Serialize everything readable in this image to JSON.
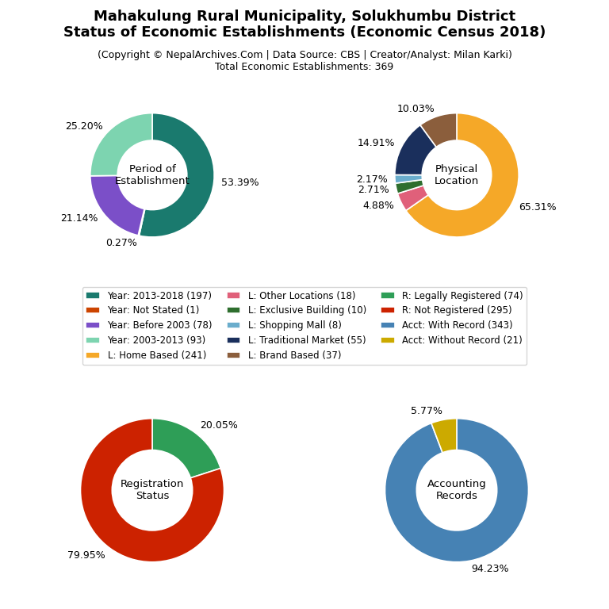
{
  "title": [
    "Mahakulung Rural Municipality, Solukhumbu District",
    "Status of Economic Establishments (Economic Census 2018)"
  ],
  "subtitle": [
    "(Copyright © NepalArchives.Com | Data Source: CBS | Creator/Analyst: Milan Karki)",
    "Total Economic Establishments: 369"
  ],
  "legend": "center",
  "chart_data": [
    {
      "type": "pie",
      "title": "Period of\nEstablishment",
      "categories": [
        "Year: 2013-2018 (197)",
        "Year: Not Stated (1)",
        "Year: Before 2003 (78)",
        "Year: 2003-2013 (93)"
      ],
      "values": [
        53.39,
        0.27,
        21.14,
        25.2
      ],
      "value_labels": [
        "53.39%",
        "0.27%",
        "21.14%",
        "25.20%"
      ],
      "colors": [
        "#1a7a6e",
        "#cc4400",
        "#7b4fc8",
        "#7dd4b0"
      ],
      "data_labels": true
    },
    {
      "type": "pie",
      "title": "Physical\nLocation",
      "categories": [
        "L: Home Based (241)",
        "L: Other Locations (18)",
        "L: Exclusive Building (10)",
        "L: Shopping Mall (8)",
        "L: Traditional Market (55)",
        "L: Brand Based (37)"
      ],
      "values": [
        65.31,
        4.88,
        2.71,
        2.17,
        14.91,
        10.03
      ],
      "value_labels": [
        "65.31%",
        "4.88%",
        "2.71%",
        "2.17%",
        "14.91%",
        "10.03%"
      ],
      "colors": [
        "#f5a828",
        "#e0607a",
        "#2e6e2e",
        "#6aadcc",
        "#1a2f5c",
        "#8b5e3c"
      ],
      "data_labels": true
    },
    {
      "type": "pie",
      "title": "Registration\nStatus",
      "categories": [
        "R: Legally Registered (74)",
        "R: Not Registered (295)"
      ],
      "values": [
        20.05,
        79.95
      ],
      "value_labels": [
        "20.05%",
        "79.95%"
      ],
      "colors": [
        "#2e9e57",
        "#cc2200"
      ],
      "data_labels": true
    },
    {
      "type": "pie",
      "title": "Accounting\nRecords",
      "categories": [
        "Acct: With Record (343)",
        "Acct: Without Record (21)"
      ],
      "values": [
        94.23,
        5.77
      ],
      "value_labels": [
        "94.23%",
        "5.77%"
      ],
      "colors": [
        "#4682b4",
        "#ccaa00"
      ],
      "data_labels": true
    }
  ]
}
